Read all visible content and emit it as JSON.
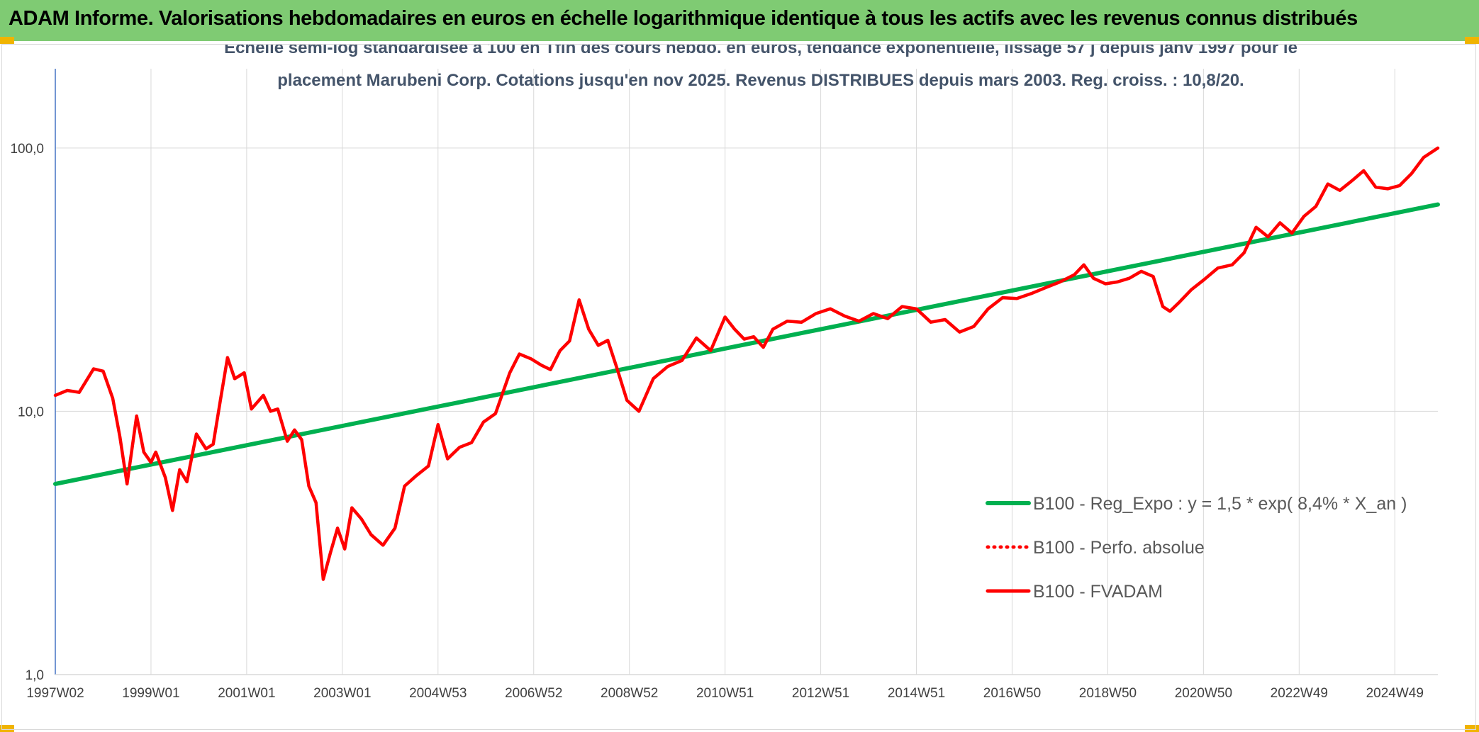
{
  "banner": {
    "title": "ADAM Informe. Valorisations hebdomadaires en euros en échelle logarithmique identique à tous les actifs avec les revenus connus distribués",
    "bg_color": "#7fcb73"
  },
  "chart_data": {
    "type": "line",
    "title_lines": [
      "Echelle semi-log standardisée à 100 en Tfin des cours hebdo. en euros, tendance exponentielle, lissage 57 j depuis janv 1997 pour le",
      "placement Marubeni Corp. Cotations jusqu'en nov 2025. Revenus DISTRIBUES depuis mars 2003. Reg. croiss. : 10,8/20."
    ],
    "y_scale": "log",
    "ylim": [
      1,
      200
    ],
    "xlim": [
      1997.0,
      2025.9
    ],
    "y_ticks": [
      {
        "value": 1,
        "label": "1,0"
      },
      {
        "value": 10,
        "label": "10,0"
      },
      {
        "value": 100,
        "label": "100,0"
      }
    ],
    "x_ticks": [
      {
        "value": 1997.0,
        "label": "1997W02"
      },
      {
        "value": 1999.0,
        "label": "1999W01"
      },
      {
        "value": 2001.0,
        "label": "2001W01"
      },
      {
        "value": 2003.0,
        "label": "2003W01"
      },
      {
        "value": 2005.0,
        "label": "2004W53"
      },
      {
        "value": 2007.0,
        "label": "2006W52"
      },
      {
        "value": 2009.0,
        "label": "2008W52"
      },
      {
        "value": 2011.0,
        "label": "2010W51"
      },
      {
        "value": 2013.0,
        "label": "2012W51"
      },
      {
        "value": 2015.0,
        "label": "2014W51"
      },
      {
        "value": 2017.0,
        "label": "2016W50"
      },
      {
        "value": 2019.0,
        "label": "2018W50"
      },
      {
        "value": 2021.0,
        "label": "2020W50"
      },
      {
        "value": 2023.0,
        "label": "2022W49"
      },
      {
        "value": 2025.0,
        "label": "2024W49"
      }
    ],
    "legend_position": "bottom-right",
    "series": [
      {
        "name": "B100 - Reg_Expo : y = 1,5 * exp( 8,4% *  X_an )",
        "color": "#00b050",
        "style": "solid",
        "x": [
          1997.0,
          2025.9
        ],
        "y": [
          5.3,
          61.0
        ]
      },
      {
        "name": "B100 - Perfo. absolue",
        "color": "#ff0000",
        "style": "dotted",
        "x": [],
        "y": []
      },
      {
        "name": "B100 - FVADAM",
        "color": "#ff0000",
        "style": "solid",
        "x": [
          1997.0,
          1997.25,
          1997.5,
          1997.8,
          1998.0,
          1998.2,
          1998.35,
          1998.5,
          1998.7,
          1998.85,
          1999.0,
          1999.1,
          1999.3,
          1999.45,
          1999.6,
          1999.75,
          1999.95,
          2000.15,
          2000.3,
          2000.45,
          2000.6,
          2000.75,
          2000.95,
          2001.1,
          2001.35,
          2001.5,
          2001.65,
          2001.85,
          2002.0,
          2002.15,
          2002.3,
          2002.45,
          2002.6,
          2002.75,
          2002.9,
          2003.05,
          2003.2,
          2003.4,
          2003.6,
          2003.85,
          2004.1,
          2004.3,
          2004.55,
          2004.8,
          2005.0,
          2005.2,
          2005.45,
          2005.7,
          2005.95,
          2006.2,
          2006.5,
          2006.7,
          2006.95,
          2007.15,
          2007.35,
          2007.55,
          2007.75,
          2007.95,
          2008.15,
          2008.35,
          2008.55,
          2008.75,
          2008.95,
          2009.2,
          2009.5,
          2009.8,
          2010.1,
          2010.4,
          2010.7,
          2011.0,
          2011.2,
          2011.4,
          2011.6,
          2011.8,
          2012.0,
          2012.3,
          2012.6,
          2012.9,
          2013.2,
          2013.5,
          2013.8,
          2014.1,
          2014.4,
          2014.7,
          2015.0,
          2015.3,
          2015.6,
          2015.9,
          2016.2,
          2016.5,
          2016.8,
          2017.1,
          2017.4,
          2017.7,
          2018.0,
          2018.3,
          2018.5,
          2018.7,
          2018.95,
          2019.2,
          2019.45,
          2019.7,
          2019.95,
          2020.15,
          2020.3,
          2020.5,
          2020.75,
          2021.0,
          2021.3,
          2021.6,
          2021.85,
          2022.1,
          2022.35,
          2022.6,
          2022.85,
          2023.1,
          2023.35,
          2023.6,
          2023.85,
          2024.1,
          2024.35,
          2024.6,
          2024.85,
          2025.1,
          2025.35,
          2025.6,
          2025.9
        ],
        "y": [
          11.5,
          12.0,
          11.8,
          14.5,
          14.2,
          11.2,
          8.0,
          5.3,
          9.6,
          7.0,
          6.4,
          7.0,
          5.6,
          4.2,
          6.0,
          5.4,
          8.2,
          7.2,
          7.5,
          11.0,
          16.0,
          13.3,
          14.0,
          10.2,
          11.5,
          10.0,
          10.2,
          7.7,
          8.5,
          7.8,
          5.2,
          4.5,
          2.3,
          2.9,
          3.6,
          3.0,
          4.3,
          3.9,
          3.4,
          3.1,
          3.6,
          5.2,
          5.7,
          6.2,
          8.9,
          6.6,
          7.3,
          7.6,
          9.1,
          9.8,
          14.0,
          16.5,
          15.8,
          15.0,
          14.4,
          17.0,
          18.5,
          26.5,
          20.5,
          17.8,
          18.6,
          14.4,
          11.0,
          10.0,
          13.3,
          14.8,
          15.6,
          19.0,
          17.0,
          22.8,
          20.5,
          18.8,
          19.2,
          17.5,
          20.5,
          22.0,
          21.8,
          23.5,
          24.5,
          23.0,
          22.0,
          23.5,
          22.5,
          25.0,
          24.5,
          21.8,
          22.3,
          20.0,
          21.0,
          24.5,
          27.0,
          26.8,
          28.0,
          29.5,
          31.0,
          33.0,
          36.0,
          32.0,
          30.5,
          31.0,
          32.0,
          34.0,
          32.5,
          25.0,
          24.0,
          26.0,
          29.0,
          31.5,
          35.0,
          36.0,
          40.0,
          50.0,
          46.0,
          52.0,
          47.5,
          55.0,
          60.0,
          73.0,
          69.0,
          75.0,
          82.0,
          71.0,
          70.0,
          72.0,
          80.0,
          92.0,
          100.0
        ]
      }
    ]
  }
}
